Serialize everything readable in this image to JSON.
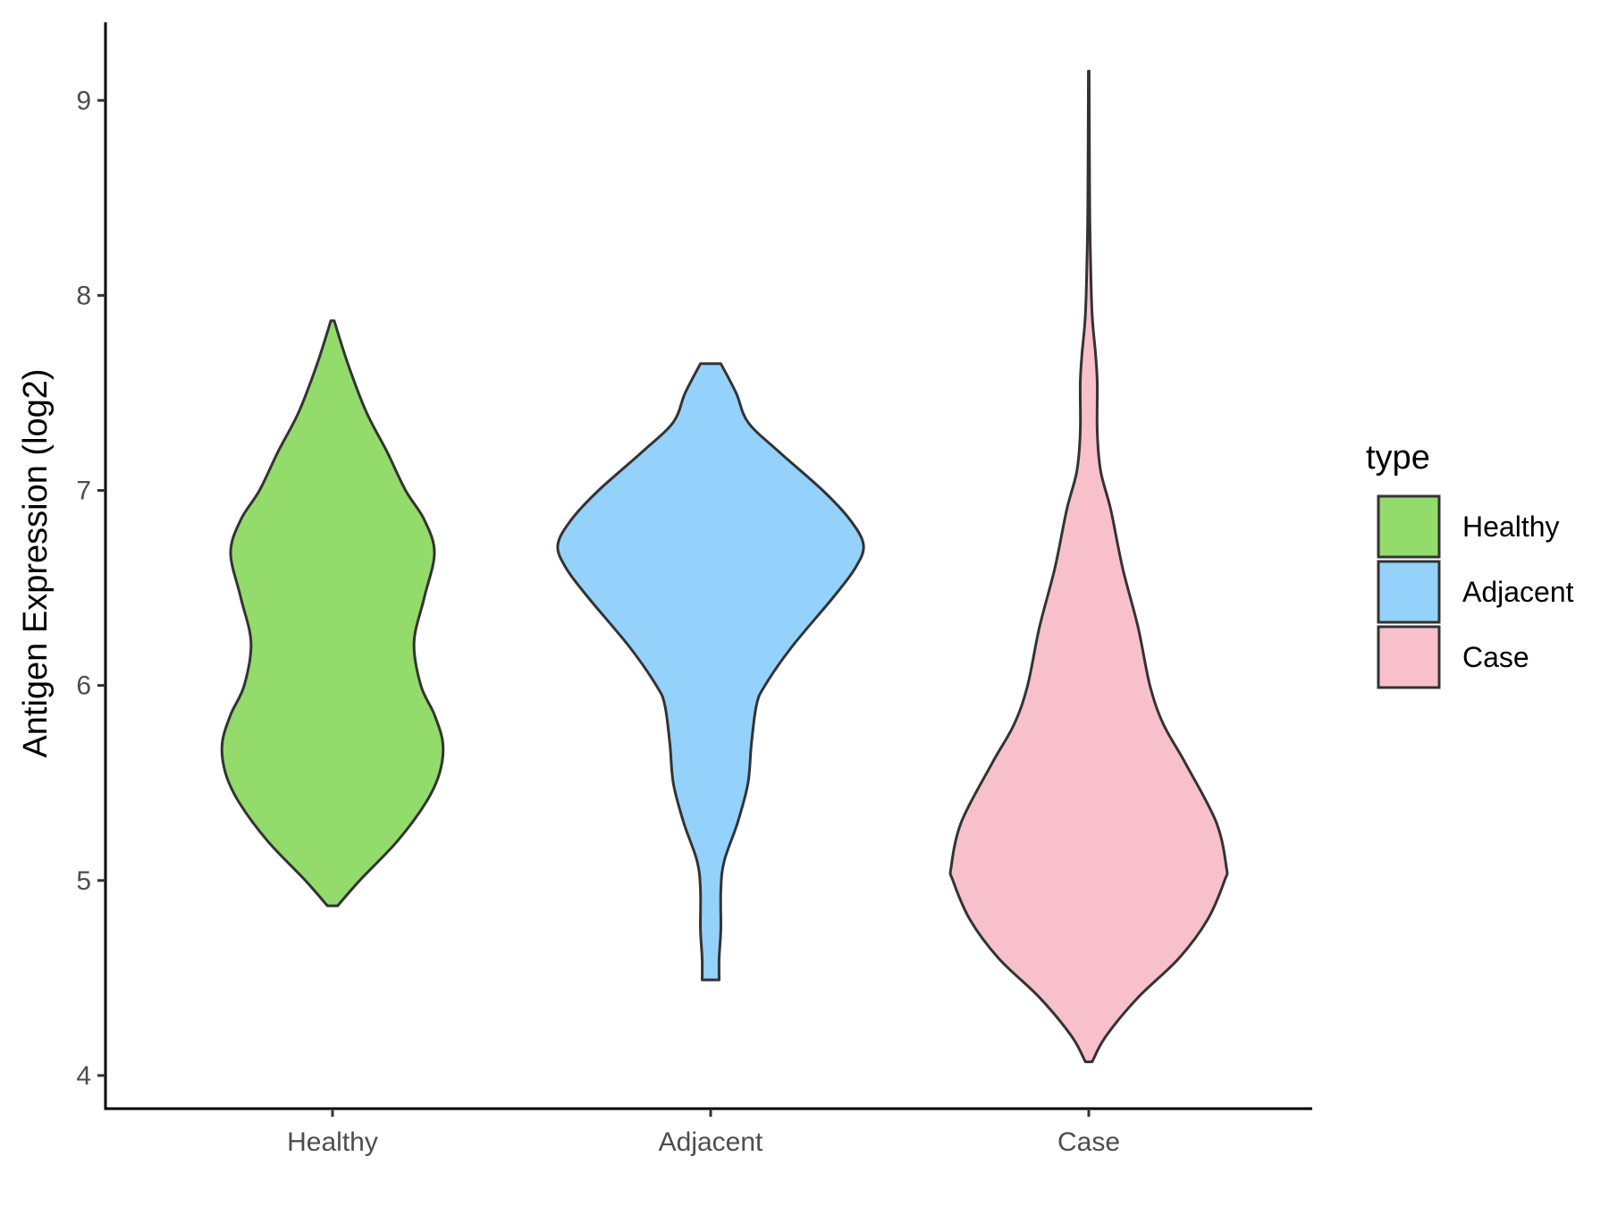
{
  "chart_data": {
    "type": "violin",
    "title": "",
    "xlabel": "",
    "ylabel": "Antigen Expression (log2)",
    "ylim": [
      3.83,
      9.4
    ],
    "yticks": [
      4,
      5,
      6,
      7,
      8,
      9
    ],
    "categories": [
      "Healthy",
      "Adjacent",
      "Case"
    ],
    "grid": false,
    "legend": {
      "title": "type",
      "position": "right",
      "entries": [
        "Healthy",
        "Adjacent",
        "Case"
      ]
    },
    "series": [
      {
        "name": "Healthy",
        "color": "#93DB6A",
        "min": 4.87,
        "max": 7.87,
        "profile": [
          [
            4.87,
            0.03
          ],
          [
            5.0,
            0.16
          ],
          [
            5.2,
            0.38
          ],
          [
            5.4,
            0.55
          ],
          [
            5.55,
            0.63
          ],
          [
            5.7,
            0.65
          ],
          [
            5.85,
            0.6
          ],
          [
            6.0,
            0.52
          ],
          [
            6.22,
            0.48
          ],
          [
            6.45,
            0.54
          ],
          [
            6.68,
            0.6
          ],
          [
            6.85,
            0.54
          ],
          [
            7.0,
            0.43
          ],
          [
            7.2,
            0.32
          ],
          [
            7.4,
            0.2
          ],
          [
            7.65,
            0.09
          ],
          [
            7.87,
            0.01
          ]
        ]
      },
      {
        "name": "Adjacent",
        "color": "#94D2FC",
        "min": 4.49,
        "max": 7.65,
        "profile": [
          [
            4.49,
            0.05
          ],
          [
            4.6,
            0.05
          ],
          [
            4.75,
            0.06
          ],
          [
            4.95,
            0.06
          ],
          [
            5.1,
            0.08
          ],
          [
            5.3,
            0.16
          ],
          [
            5.5,
            0.22
          ],
          [
            5.7,
            0.24
          ],
          [
            5.9,
            0.27
          ],
          [
            6.0,
            0.32
          ],
          [
            6.2,
            0.48
          ],
          [
            6.45,
            0.72
          ],
          [
            6.6,
            0.85
          ],
          [
            6.72,
            0.9
          ],
          [
            6.85,
            0.82
          ],
          [
            7.0,
            0.66
          ],
          [
            7.2,
            0.4
          ],
          [
            7.35,
            0.22
          ],
          [
            7.5,
            0.15
          ],
          [
            7.65,
            0.06
          ]
        ]
      },
      {
        "name": "Case",
        "color": "#F7C0CB",
        "min": 4.07,
        "max": 9.15,
        "profile": [
          [
            4.07,
            0.02
          ],
          [
            4.2,
            0.1
          ],
          [
            4.4,
            0.29
          ],
          [
            4.6,
            0.53
          ],
          [
            4.8,
            0.7
          ],
          [
            5.0,
            0.8
          ],
          [
            5.07,
            0.81
          ],
          [
            5.3,
            0.75
          ],
          [
            5.6,
            0.57
          ],
          [
            5.8,
            0.44
          ],
          [
            6.0,
            0.36
          ],
          [
            6.3,
            0.29
          ],
          [
            6.6,
            0.2
          ],
          [
            6.9,
            0.13
          ],
          [
            7.1,
            0.07
          ],
          [
            7.3,
            0.05
          ],
          [
            7.55,
            0.05
          ],
          [
            7.7,
            0.04
          ],
          [
            7.9,
            0.02
          ],
          [
            8.2,
            0.01
          ],
          [
            8.5,
            0.005
          ],
          [
            9.15,
            0.002
          ]
        ]
      }
    ]
  }
}
